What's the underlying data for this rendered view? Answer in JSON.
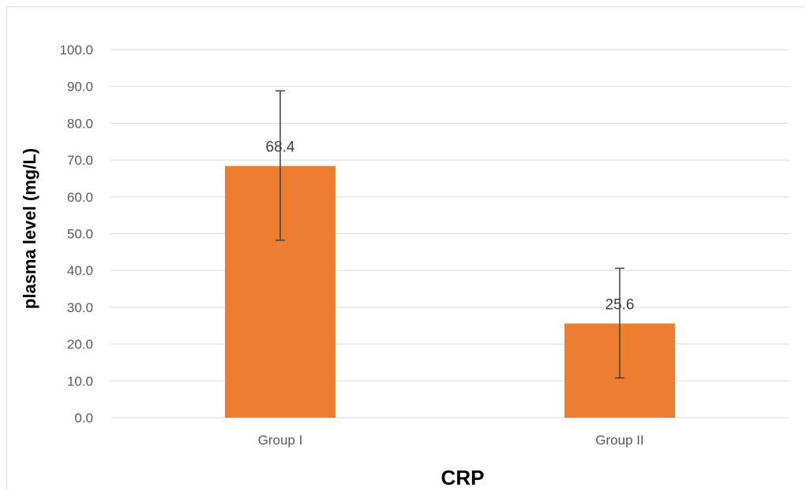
{
  "chart_data": {
    "type": "bar",
    "title": "",
    "xlabel": "CRP",
    "ylabel": "plasma level (mg/L)",
    "categories": [
      "Group I",
      "Group II"
    ],
    "series": [
      {
        "values": [
          68.4,
          25.6
        ],
        "error_low": [
          48.2,
          10.8
        ],
        "error_high": [
          88.8,
          40.6
        ],
        "data_labels": [
          "68.4",
          "25.6"
        ]
      }
    ],
    "ylim": [
      0,
      100
    ],
    "yticks": [
      "0.0",
      "10.0",
      "20.0",
      "30.0",
      "40.0",
      "50.0",
      "60.0",
      "70.0",
      "80.0",
      "90.0",
      "100.0"
    ],
    "grid": true,
    "legend": "none",
    "colors": {
      "bar": "#ED7D31",
      "error_bar": "#404040",
      "grid": "#d9d9d9"
    }
  }
}
